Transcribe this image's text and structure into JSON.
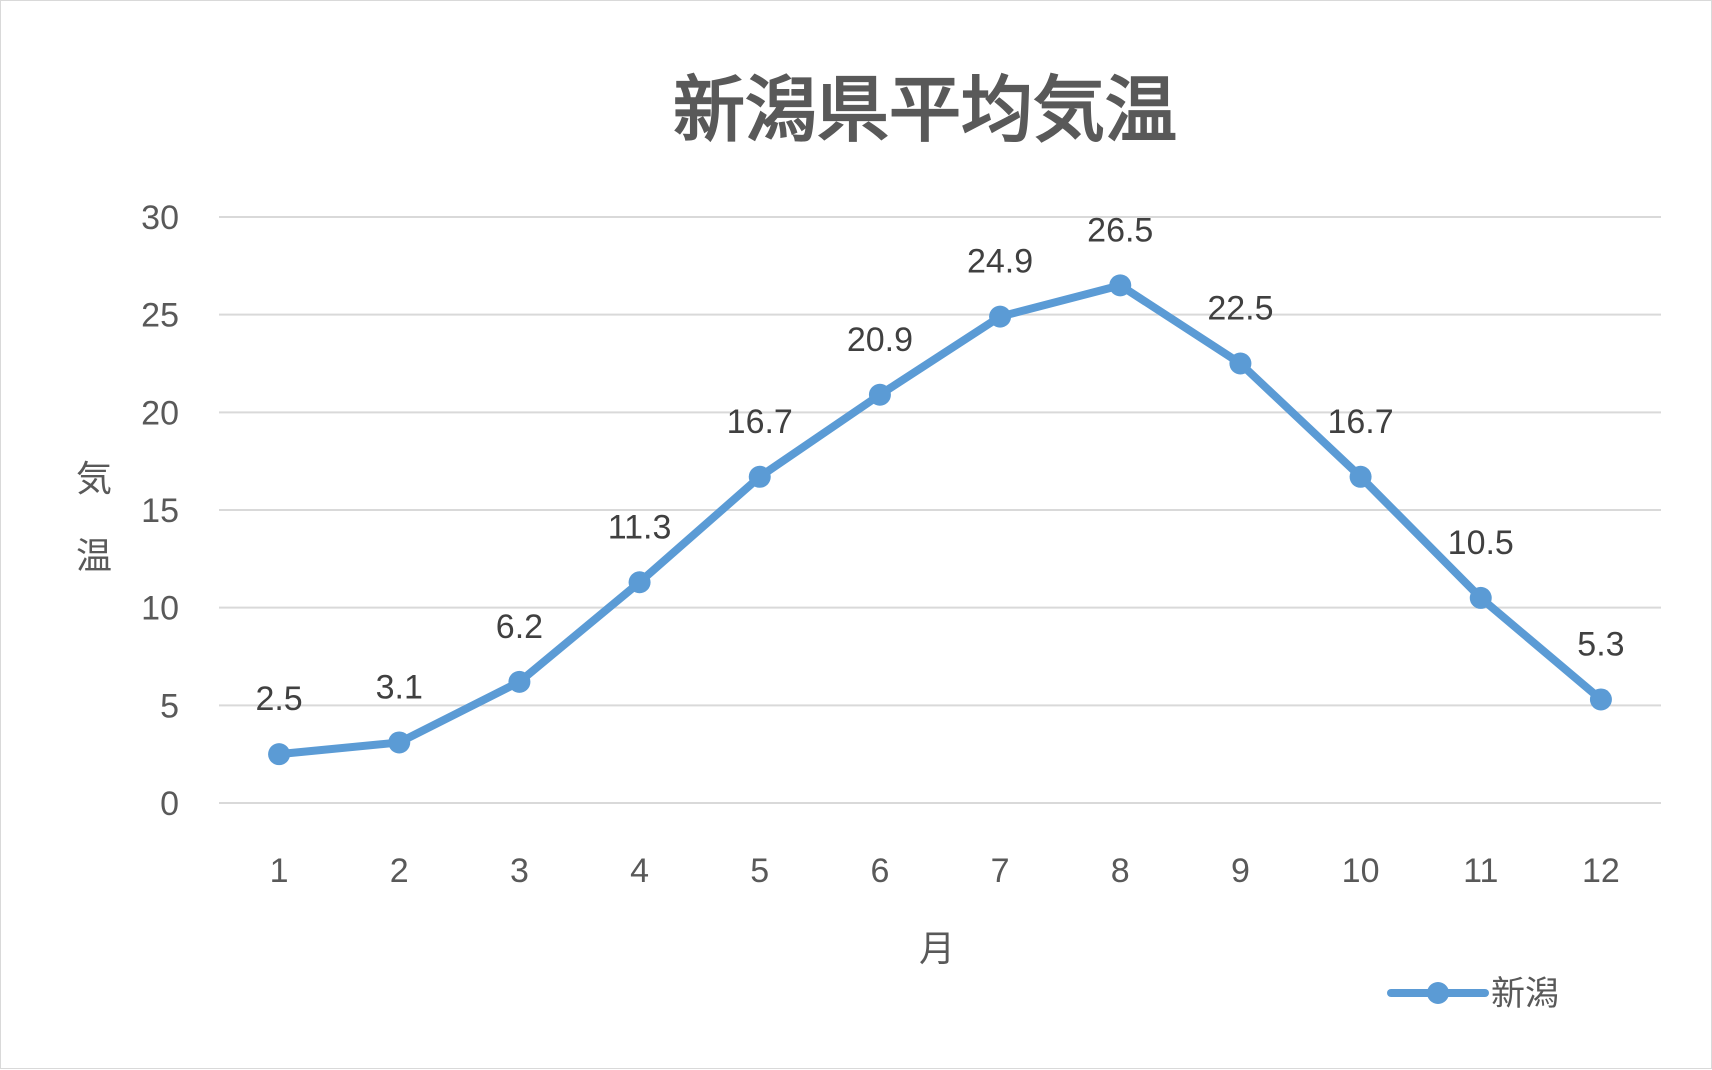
{
  "chart_data": {
    "type": "line",
    "title": "新潟県平均気温",
    "xlabel": "月",
    "ylabel": "気温",
    "x": [
      "1",
      "2",
      "3",
      "4",
      "5",
      "6",
      "7",
      "8",
      "9",
      "10",
      "11",
      "12"
    ],
    "series": [
      {
        "name": "新潟",
        "values": [
          2.5,
          3.1,
          6.2,
          11.3,
          16.7,
          20.9,
          24.9,
          26.5,
          22.5,
          16.7,
          10.5,
          5.3
        ]
      }
    ],
    "ylim": [
      0,
      30
    ],
    "yticks": [
      "0",
      "5",
      "10",
      "15",
      "20",
      "25",
      "30"
    ],
    "grid": true,
    "data_labels": true,
    "legend": "bottom-right",
    "colors": {
      "series": "#5b9bd5",
      "grid": "#d9d9d9",
      "text": "#595959"
    }
  }
}
